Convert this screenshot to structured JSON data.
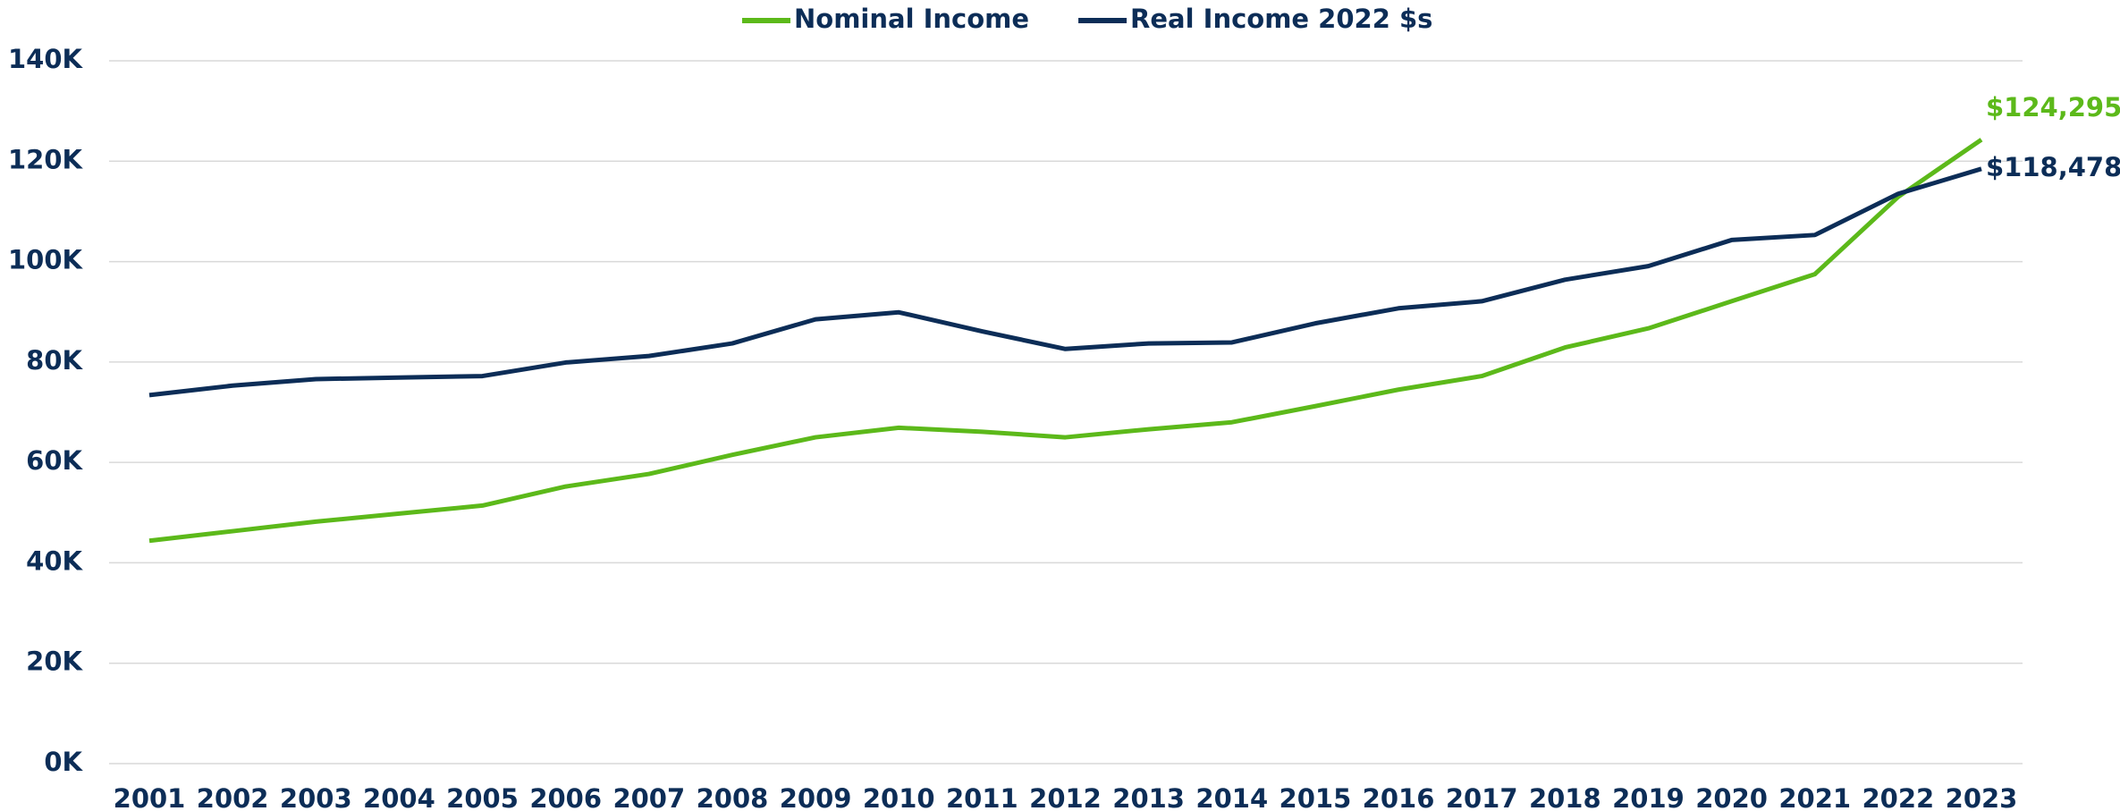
{
  "chart_data": {
    "type": "line",
    "categories": [
      "2001",
      "2002",
      "2003",
      "2004",
      "2005",
      "2006",
      "2007",
      "2008",
      "2009",
      "2010",
      "2011",
      "2012",
      "2013",
      "2014",
      "2015",
      "2016",
      "2017",
      "2018",
      "2019",
      "2020",
      "2021",
      "2022",
      "2023"
    ],
    "series": [
      {
        "name": "Nominal Income",
        "color": "#5cb91a",
        "values": [
          44400,
          46300,
          48200,
          49800,
          51400,
          55200,
          57700,
          61500,
          65000,
          66900,
          66100,
          65000,
          66600,
          68000,
          71200,
          74500,
          77200,
          82900,
          86700,
          92100,
          97500,
          112900,
          124295
        ],
        "value_labels": [
          null,
          null,
          null,
          null,
          null,
          null,
          null,
          null,
          null,
          null,
          null,
          null,
          null,
          null,
          null,
          null,
          null,
          null,
          null,
          null,
          null,
          null,
          "$124,295"
        ]
      },
      {
        "name": "Real Income 2022 $s",
        "color": "#0c2d57",
        "values": [
          73400,
          75300,
          76600,
          76900,
          77200,
          79900,
          81200,
          83700,
          88500,
          89900,
          86100,
          82600,
          83700,
          83900,
          87700,
          90700,
          92100,
          96400,
          99100,
          104300,
          105300,
          113500,
          118478
        ],
        "value_labels": [
          null,
          null,
          null,
          null,
          null,
          null,
          null,
          null,
          null,
          null,
          null,
          null,
          null,
          null,
          null,
          null,
          null,
          null,
          null,
          null,
          null,
          null,
          "$118,478"
        ]
      }
    ],
    "ylim": [
      0,
      140000
    ],
    "yticks": [
      {
        "value": 0,
        "label": "0K"
      },
      {
        "value": 20000,
        "label": "20K"
      },
      {
        "value": 40000,
        "label": "40K"
      },
      {
        "value": 60000,
        "label": "60K"
      },
      {
        "value": 80000,
        "label": "80K"
      },
      {
        "value": 100000,
        "label": "100K"
      },
      {
        "value": 120000,
        "label": "120K"
      },
      {
        "value": 140000,
        "label": "140K"
      }
    ],
    "grid": true,
    "legend": "top"
  }
}
